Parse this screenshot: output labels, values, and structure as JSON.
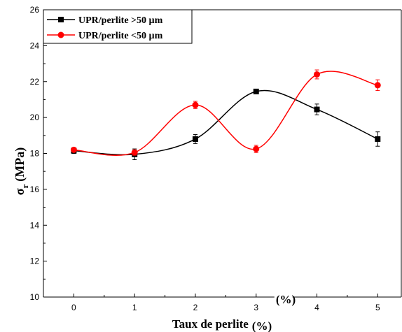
{
  "chart_data": {
    "type": "scatter",
    "x": [
      0,
      1,
      2,
      3,
      4,
      5
    ],
    "xticks": [
      "0",
      "1",
      "2",
      "3",
      "4",
      "5"
    ],
    "yticks": [
      "10",
      "12",
      "14",
      "16",
      "18",
      "20",
      "22",
      "24",
      "26"
    ],
    "xlim": [
      -0.5,
      5.4
    ],
    "ylim": [
      10,
      26
    ],
    "xlabel_main": "Taux de perlite",
    "xlabel_unit": "(%)",
    "xlabel_extra_unit": "(%)",
    "ylabel_main": "σ",
    "ylabel_sub": "r",
    "ylabel_unit": "(MPa)",
    "legend_position": "top-left",
    "grid": false,
    "series": [
      {
        "name": "UPR/perlite >50 µm",
        "color": "#000000",
        "marker": "square",
        "values": [
          18.15,
          17.95,
          18.8,
          21.45,
          20.45,
          18.8
        ],
        "errors": [
          0.15,
          0.3,
          0.25,
          0.1,
          0.3,
          0.4
        ]
      },
      {
        "name": "UPR/perlite <50 µm",
        "color": "#ff0000",
        "marker": "circle",
        "values": [
          18.2,
          18.05,
          20.7,
          18.25,
          22.4,
          21.8
        ],
        "errors": [
          0.1,
          0.15,
          0.2,
          0.2,
          0.25,
          0.3
        ]
      }
    ]
  }
}
